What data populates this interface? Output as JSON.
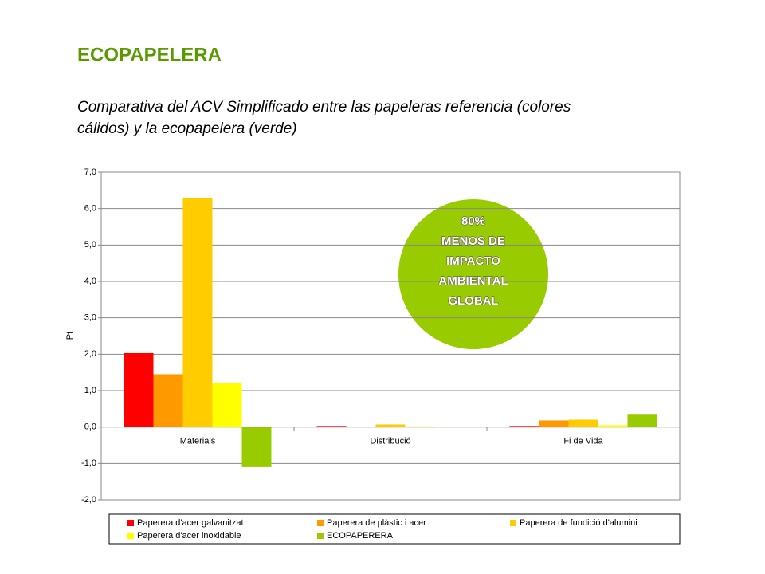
{
  "chart_data": {
    "type": "bar",
    "title": "ECOPAPELERA",
    "subtitle": [
      "Comparativa del ACV Simplificado entre las papeleras referencia (colores",
      "cálidos) y la ecopapelera (verde)"
    ],
    "y_label": "Pt",
    "annotation": [
      "80%",
      "MENOS DE",
      "IMPACTO",
      "AMBIENTAL",
      "GLOBAL"
    ],
    "categories": [
      "Materials",
      "Distribució",
      "Fi de Vida"
    ],
    "series": [
      {
        "name": "Paperera d'acer galvanitzat",
        "color": "#ff0000",
        "values": [
          2.03,
          0.03,
          0.03
        ]
      },
      {
        "name": "Paperera de plàstic i acer",
        "color": "#ff9900",
        "values": [
          1.45,
          0.0,
          0.18
        ]
      },
      {
        "name": "Paperera de fundició d'alumini",
        "color": "#ffcc00",
        "values": [
          6.3,
          0.07,
          0.2
        ]
      },
      {
        "name": "Paperera d'acer inoxidable",
        "color": "#ffff00",
        "values": [
          1.2,
          0.02,
          0.05
        ]
      },
      {
        "name": "ECOPAPERERA",
        "color": "#99cc00",
        "values": [
          -1.1,
          0.0,
          0.36
        ]
      }
    ],
    "ylim": [
      -2,
      7
    ],
    "yticks": [
      {
        "value": -2,
        "label": "-2,0"
      },
      {
        "value": -1,
        "label": "-1,0"
      },
      {
        "value": 0,
        "label": "0,0"
      },
      {
        "value": 1,
        "label": "1,0"
      },
      {
        "value": 2,
        "label": "2,0"
      },
      {
        "value": 3,
        "label": "3,0"
      },
      {
        "value": 4,
        "label": "4,0"
      },
      {
        "value": 5,
        "label": "5,0"
      },
      {
        "value": 6,
        "label": "6,0"
      },
      {
        "value": 7,
        "label": "7,0"
      }
    ],
    "grid": true
  }
}
